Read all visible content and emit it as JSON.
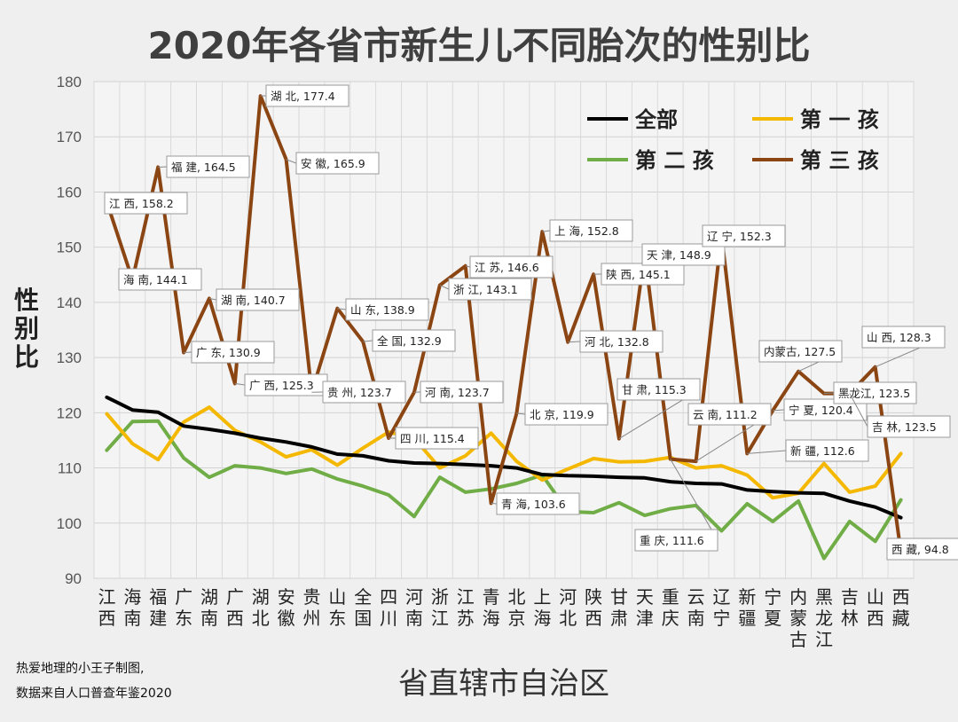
{
  "chart_data": {
    "type": "line",
    "title": "2020年各省市新生儿不同胎次的性别比",
    "xlabel": "省直辖市自治区",
    "ylabel": "性别比",
    "ylim": [
      90,
      180
    ],
    "yticks": [
      90,
      100,
      110,
      120,
      130,
      140,
      150,
      160,
      170,
      180
    ],
    "grid": true,
    "legend_position": "top-right",
    "categories": [
      "江西",
      "海南",
      "福建",
      "广东",
      "湖南",
      "广西",
      "湖北",
      "安徽",
      "贵州",
      "山东",
      "全国",
      "四川",
      "河南",
      "浙江",
      "江苏",
      "青海",
      "北京",
      "上海",
      "河北",
      "陕西",
      "甘肃",
      "天津",
      "重庆",
      "云南",
      "辽宁",
      "新疆",
      "宁夏",
      "内蒙古",
      "黑龙江",
      "吉林",
      "山西",
      "西藏"
    ],
    "series": [
      {
        "name": "全部",
        "color": "#000000",
        "values": [
          122.8,
          120.5,
          120.1,
          117.6,
          117.0,
          116.3,
          115.4,
          114.7,
          113.8,
          112.5,
          112.2,
          111.3,
          110.9,
          110.8,
          110.6,
          110.4,
          110.0,
          108.8,
          108.6,
          108.5,
          108.3,
          108.2,
          107.5,
          107.2,
          107.1,
          106.0,
          105.7,
          105.5,
          105.4,
          104.0,
          102.9,
          101.0
        ]
      },
      {
        "name": "第一孩",
        "color": "#f5b800",
        "values": [
          119.8,
          114.4,
          111.5,
          118.3,
          121.0,
          116.8,
          114.7,
          112.0,
          113.3,
          110.5,
          113.6,
          116.5,
          115.4,
          110.0,
          112.2,
          116.3,
          111.2,
          107.8,
          109.8,
          111.7,
          111.1,
          111.2,
          111.9,
          110.0,
          110.4,
          108.7,
          104.6,
          105.4,
          110.8,
          105.6,
          106.7,
          112.6
        ]
      },
      {
        "name": "第二孩",
        "color": "#70ad47",
        "values": [
          113.2,
          118.4,
          118.5,
          111.8,
          108.3,
          110.4,
          110.0,
          109.0,
          109.8,
          108.0,
          106.7,
          105.1,
          101.2,
          108.3,
          105.6,
          106.2,
          107.2,
          108.7,
          102.1,
          101.9,
          103.7,
          101.4,
          102.6,
          103.2,
          98.6,
          103.5,
          100.3,
          104.0,
          93.6,
          100.3,
          96.7,
          104.2
        ]
      },
      {
        "name": "第三孩",
        "color": "#8b4513",
        "values": [
          158.2,
          144.1,
          164.5,
          130.9,
          140.7,
          125.3,
          177.4,
          165.9,
          123.7,
          138.9,
          132.9,
          115.4,
          123.7,
          143.1,
          146.6,
          103.6,
          119.9,
          152.8,
          132.8,
          145.1,
          115.3,
          148.9,
          111.6,
          111.2,
          152.3,
          112.6,
          120.4,
          127.5,
          123.5,
          123.5,
          128.3,
          94.8
        ]
      }
    ],
    "annotations": [
      {
        "category": "江西",
        "label": "江 西, 158.2",
        "value": 158.2
      },
      {
        "category": "海南",
        "label": "海 南, 144.1",
        "value": 144.1
      },
      {
        "category": "福建",
        "label": "福 建, 164.5",
        "value": 164.5
      },
      {
        "category": "广东",
        "label": "广 东, 130.9",
        "value": 130.9
      },
      {
        "category": "湖南",
        "label": "湖 南, 140.7",
        "value": 140.7
      },
      {
        "category": "广西",
        "label": "广 西, 125.3",
        "value": 125.3
      },
      {
        "category": "湖北",
        "label": "湖 北, 177.4",
        "value": 177.4
      },
      {
        "category": "安徽",
        "label": "安 徽, 165.9",
        "value": 165.9
      },
      {
        "category": "贵州",
        "label": "贵 州, 123.7",
        "value": 123.7
      },
      {
        "category": "山东",
        "label": "山 东, 138.9",
        "value": 138.9
      },
      {
        "category": "全国",
        "label": "全 国, 132.9",
        "value": 132.9
      },
      {
        "category": "四川",
        "label": "四 川, 115.4",
        "value": 115.4
      },
      {
        "category": "河南",
        "label": "河 南, 123.7",
        "value": 123.7
      },
      {
        "category": "浙江",
        "label": "浙 江, 143.1",
        "value": 143.1
      },
      {
        "category": "江苏",
        "label": "江 苏, 146.6",
        "value": 146.6
      },
      {
        "category": "青海",
        "label": "青 海, 103.6",
        "value": 103.6
      },
      {
        "category": "北京",
        "label": "北 京, 119.9",
        "value": 119.9
      },
      {
        "category": "上海",
        "label": "上 海, 152.8",
        "value": 152.8
      },
      {
        "category": "河北",
        "label": "河 北, 132.8",
        "value": 132.8
      },
      {
        "category": "陕西",
        "label": "陕 西, 145.1",
        "value": 145.1
      },
      {
        "category": "甘肃",
        "label": "甘 肃, 115.3",
        "value": 115.3
      },
      {
        "category": "天津",
        "label": "天 津, 148.9",
        "value": 148.9
      },
      {
        "category": "重庆",
        "label": "重 庆, 111.6",
        "value": 111.6
      },
      {
        "category": "云南",
        "label": "云 南, 111.2",
        "value": 111.2
      },
      {
        "category": "辽宁",
        "label": "辽 宁, 152.3",
        "value": 152.3
      },
      {
        "category": "新疆",
        "label": "新 疆, 112.6",
        "value": 112.6
      },
      {
        "category": "宁夏",
        "label": "宁 夏, 120.4",
        "value": 120.4
      },
      {
        "category": "内蒙古",
        "label": "内蒙古, 127.5",
        "value": 127.5
      },
      {
        "category": "黑龙江",
        "label": "黑龙江, 123.5",
        "value": 123.5
      },
      {
        "category": "吉林",
        "label": "吉 林, 123.5",
        "value": 123.5
      },
      {
        "category": "山西",
        "label": "山 西, 128.3",
        "value": 128.3
      },
      {
        "category": "西藏",
        "label": "西 藏, 94.8",
        "value": 94.8
      }
    ],
    "legend": [
      {
        "name": "全部",
        "label": "全部",
        "color": "#000000"
      },
      {
        "name": "第一孩",
        "label": "第 一 孩",
        "color": "#f5b800"
      },
      {
        "name": "第二孩",
        "label": "第 二 孩",
        "color": "#70ad47"
      },
      {
        "name": "第三孩",
        "label": "第 三 孩",
        "color": "#8b4513"
      }
    ]
  },
  "credit": {
    "line1": "热爱地理的小王子制图,",
    "line2": "数据来自人口普查年鉴2020"
  }
}
